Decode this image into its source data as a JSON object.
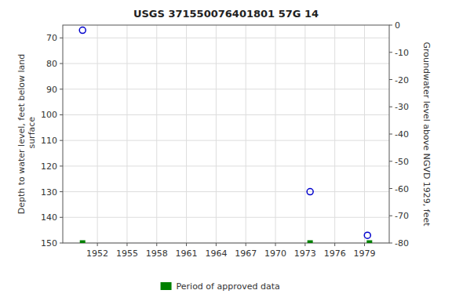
{
  "chart_data": {
    "type": "scatter",
    "title": "USGS 371550076401801 57G 14",
    "ylabel": "Depth to water level, feet below land\n surface",
    "y2label": "Groundwater level above NGVD 1929, feet",
    "series": [
      {
        "type": "scatter",
        "marker": "circle",
        "color": "#0000cc",
        "x": [
          1950.5,
          1973.5,
          1979.3
        ],
        "values": [
          67.0,
          130.0,
          147.0
        ]
      },
      {
        "name": "Period of approved data",
        "type": "scatter",
        "marker": "square",
        "color": "#008000",
        "x": [
          1950.5,
          1973.5,
          1979.5
        ],
        "values": [
          150.0,
          150.0,
          150.0
        ]
      }
    ],
    "xlim": [
      1948.5,
      1981.5
    ],
    "xticks": [
      1952,
      1955,
      1958,
      1961,
      1964,
      1967,
      1970,
      1973,
      1976,
      1979
    ],
    "ylim": [
      150,
      65
    ],
    "yticks": [
      70,
      80,
      90,
      100,
      110,
      120,
      130,
      140,
      150
    ],
    "y2lim": [
      -80,
      0
    ],
    "y2ticks": [
      0,
      -10,
      -20,
      -30,
      -40,
      -50,
      -60,
      -70,
      -80
    ],
    "grid": true,
    "legend": "bottom"
  }
}
